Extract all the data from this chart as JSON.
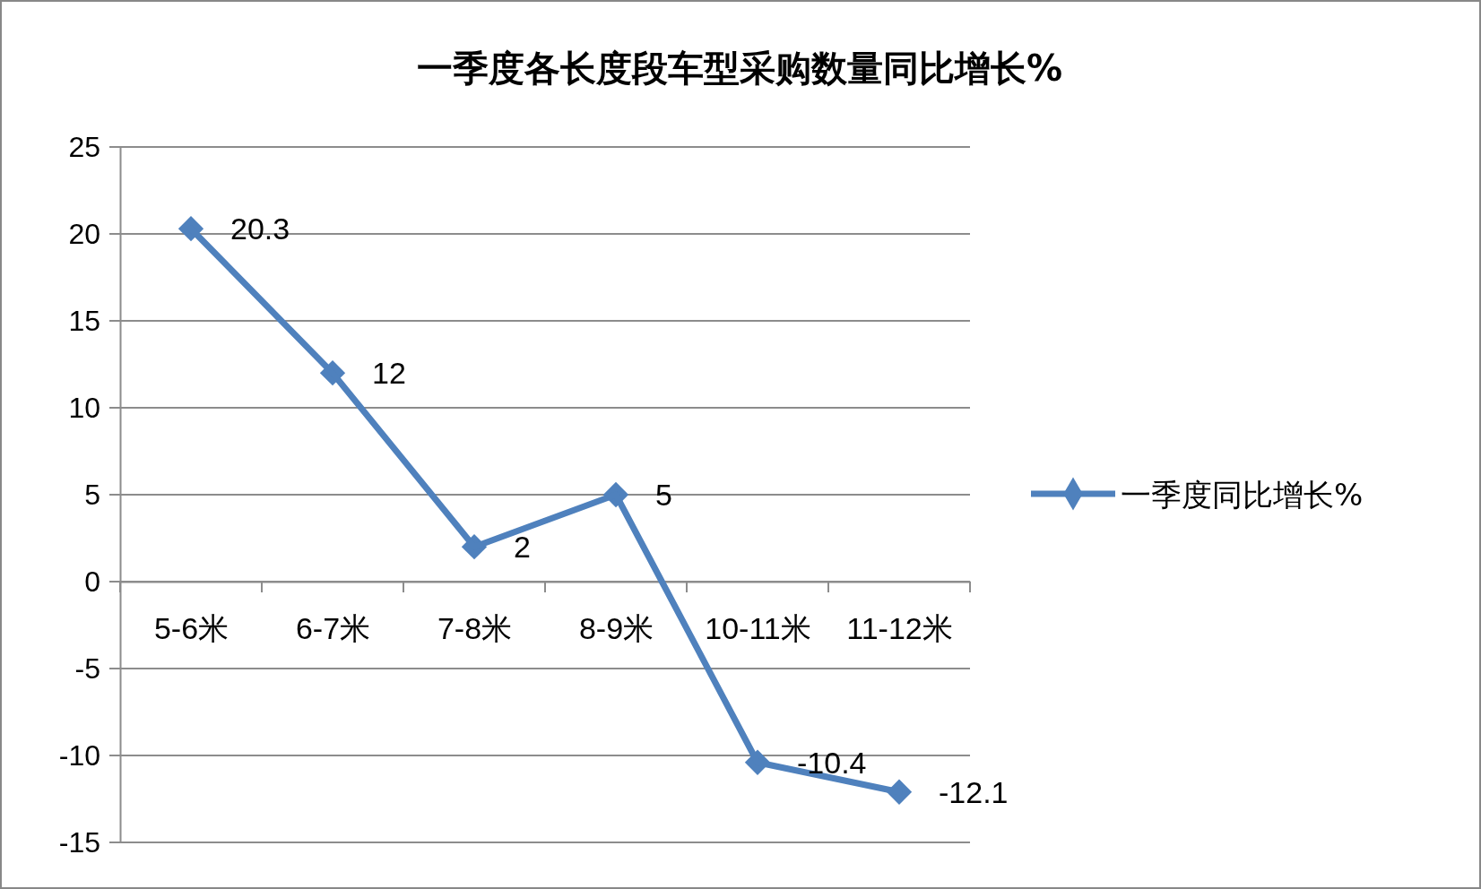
{
  "chart_data": {
    "type": "line",
    "title": "一季度各长度段车型采购数量同比增长%",
    "categories": [
      "5-6米",
      "6-7米",
      "7-8米",
      "8-9米",
      "10-11米",
      "11-12米"
    ],
    "series": [
      {
        "name": "一季度同比增长%",
        "color": "#4f81bd",
        "values": [
          20.3,
          12,
          2,
          5,
          -10.4,
          -12.1
        ]
      }
    ],
    "ylim": [
      -15,
      25
    ],
    "yticks": [
      -15,
      -10,
      -5,
      0,
      5,
      10,
      15,
      20,
      25
    ],
    "grid": "y",
    "legend": "right",
    "marker": "diamond",
    "line_style": "solid",
    "data_labels": true
  }
}
